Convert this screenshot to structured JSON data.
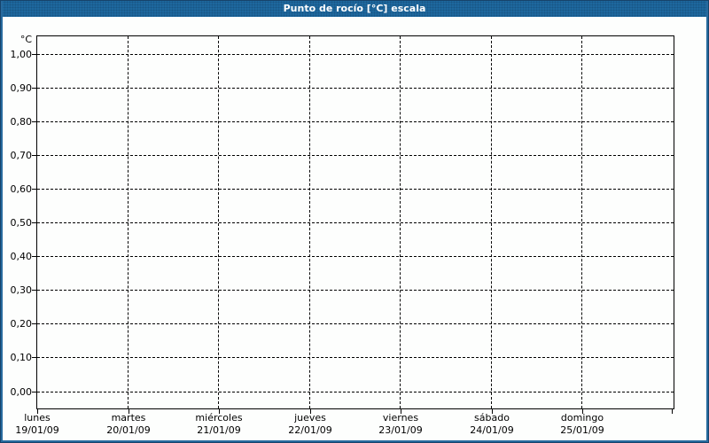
{
  "header": {
    "title": "Punto de rocío [°C] escala"
  },
  "colors": {
    "titlebar_bg": "#1e689e",
    "titlebar_text": "#ffffff",
    "frame_border": "#276a9e",
    "frame_border_dark": "#16436b",
    "plot_background": "#fdfefd",
    "grid_color": "#000000",
    "text_color": "#000000"
  },
  "chart_data": {
    "type": "line",
    "title": "Punto de rocío [°C] escala",
    "ylabel": "°C",
    "xlabel": "",
    "ylim": [
      0.0,
      1.0
    ],
    "y_tick_step": 0.1,
    "y_tick_labels": [
      "1,00",
      "0,90",
      "0,80",
      "0,70",
      "0,60",
      "0,50",
      "0,40",
      "0,30",
      "0,20",
      "0,10",
      "0,00"
    ],
    "x_categories": [
      {
        "day": "lunes",
        "date": "19/01/09"
      },
      {
        "day": "martes",
        "date": "20/01/09"
      },
      {
        "day": "miércoles",
        "date": "21/01/09"
      },
      {
        "day": "jueves",
        "date": "22/01/09"
      },
      {
        "day": "viernes",
        "date": "23/01/09"
      },
      {
        "day": "sábado",
        "date": "24/01/09"
      },
      {
        "day": "domingo",
        "date": "25/01/09"
      }
    ],
    "series": [],
    "grid": "dashed",
    "legend": "none"
  }
}
